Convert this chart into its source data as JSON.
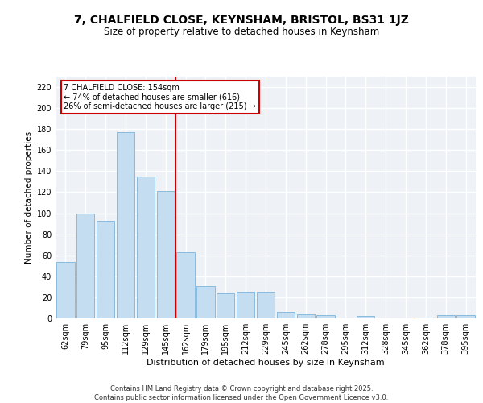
{
  "title1": "7, CHALFIELD CLOSE, KEYNSHAM, BRISTOL, BS31 1JZ",
  "title2": "Size of property relative to detached houses in Keynsham",
  "xlabel": "Distribution of detached houses by size in Keynsham",
  "ylabel": "Number of detached properties",
  "categories": [
    "62sqm",
    "79sqm",
    "95sqm",
    "112sqm",
    "129sqm",
    "145sqm",
    "162sqm",
    "179sqm",
    "195sqm",
    "212sqm",
    "229sqm",
    "245sqm",
    "262sqm",
    "278sqm",
    "295sqm",
    "312sqm",
    "328sqm",
    "345sqm",
    "362sqm",
    "378sqm",
    "395sqm"
  ],
  "values": [
    54,
    100,
    93,
    177,
    135,
    121,
    63,
    31,
    24,
    25,
    25,
    6,
    4,
    3,
    0,
    2,
    0,
    0,
    1,
    3,
    3
  ],
  "bar_color": "#c5ddf0",
  "bar_edge_color": "#6aaad4",
  "vline_x_index": 5.5,
  "vline_color": "#cc0000",
  "annotation_line1": "7 CHALFIELD CLOSE: 154sqm",
  "annotation_line2": "← 74% of detached houses are smaller (616)",
  "annotation_line3": "26% of semi-detached houses are larger (215) →",
  "annotation_box_edge_color": "#cc0000",
  "annotation_text_color": "black",
  "annotation_bg_color": "white",
  "ylim": [
    0,
    230
  ],
  "yticks": [
    0,
    20,
    40,
    60,
    80,
    100,
    120,
    140,
    160,
    180,
    200,
    220
  ],
  "bg_color": "#eef2f7",
  "grid_color": "white",
  "footer_line1": "Contains HM Land Registry data © Crown copyright and database right 2025.",
  "footer_line2": "Contains public sector information licensed under the Open Government Licence v3.0.",
  "title1_fontsize": 10,
  "title2_fontsize": 8.5,
  "xlabel_fontsize": 8,
  "ylabel_fontsize": 7.5,
  "tick_fontsize": 7,
  "annotation_fontsize": 7,
  "footer_fontsize": 6
}
